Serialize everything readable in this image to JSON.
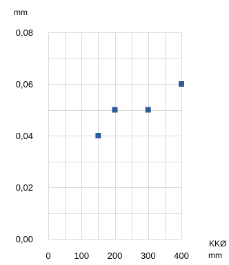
{
  "chart_data": {
    "type": "scatter",
    "ylabel": "mm",
    "xlabel": "KKØ",
    "xunit": "mm",
    "xlim": [
      0,
      400
    ],
    "ylim": [
      0.0,
      0.08
    ],
    "x_ticks": [
      0,
      100,
      200,
      300,
      400
    ],
    "x_tick_labels": [
      "0",
      "100",
      "200",
      "300",
      "400"
    ],
    "y_ticks": [
      0.0,
      0.02,
      0.04,
      0.06,
      0.08
    ],
    "y_tick_labels": [
      "0,00",
      "0,02",
      "0,04",
      "0,06",
      "0,08"
    ],
    "grid": true,
    "legend": "none",
    "marker": "square",
    "series": [
      {
        "color": "#2e5c9a",
        "points": [
          {
            "x": 150,
            "y": 0.04
          },
          {
            "x": 200,
            "y": 0.05
          },
          {
            "x": 300,
            "y": 0.05
          },
          {
            "x": 400,
            "y": 0.06
          }
        ]
      }
    ],
    "gridline_color": "#d9d9d9"
  }
}
